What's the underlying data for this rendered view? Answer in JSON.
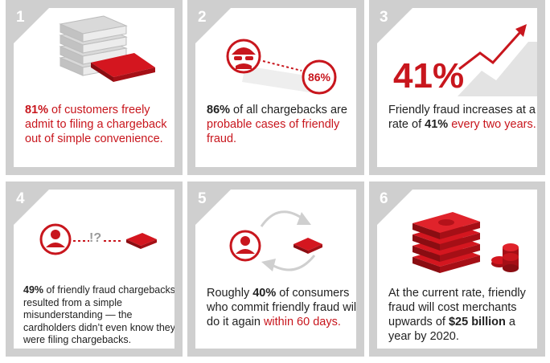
{
  "cards": [
    {
      "number": "1",
      "pre": "",
      "strong": "81%",
      "mid": " of customers freely admit to filing a chargeback out of simple convenience.",
      "tail": ""
    },
    {
      "number": "2",
      "badge": "86%",
      "strong": "86%",
      "mid": " of all chargebacks are ",
      "red": "probable cases of friendly fraud."
    },
    {
      "number": "3",
      "big": "41%",
      "pre": "Friendly fraud increases at a rate of ",
      "strong": "41%",
      "red": " every two years."
    },
    {
      "number": "4",
      "marks": "!?",
      "strong": "49%",
      "mid": " of friendly fraud chargebacks resulted from a simple misunderstanding — the cardholders didn’t even know they were filing chargebacks."
    },
    {
      "number": "5",
      "pre": "Roughly ",
      "strong": "40%",
      "mid": " of consumers who commit friendly fraud will do it again ",
      "red": "within 60 days."
    },
    {
      "number": "6",
      "pre": "At the current rate, friendly fraud will cost merchants upwards of ",
      "strong": "$25 billion",
      "mid": " a year by 2020."
    }
  ],
  "colors": {
    "accent": "#c8161d",
    "panel": "#cfcfcf"
  }
}
